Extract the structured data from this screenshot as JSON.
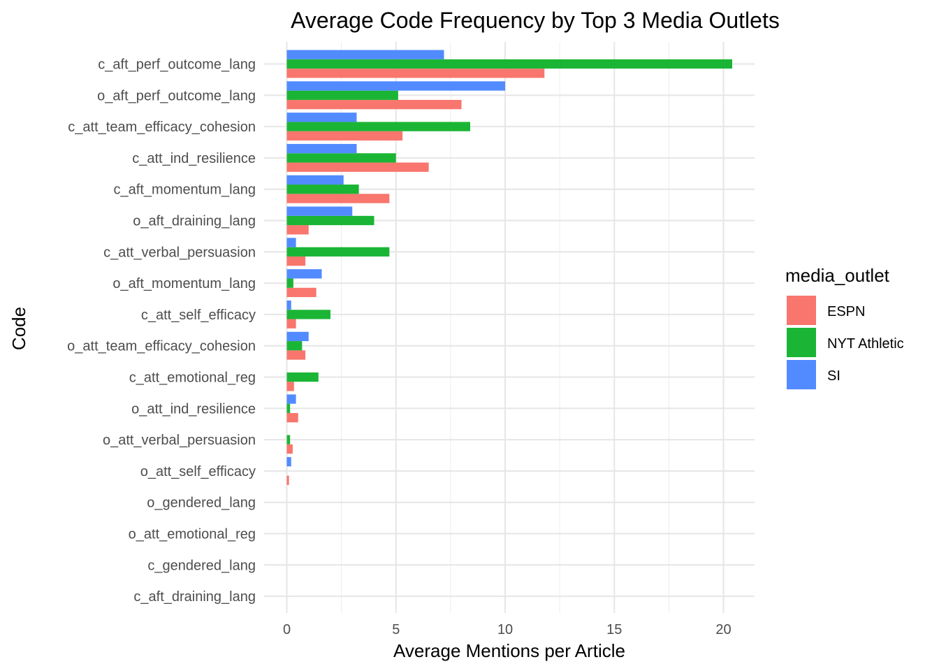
{
  "chart_data": {
    "type": "bar",
    "orientation": "horizontal",
    "title": "Average Code Frequency by Top 3 Media Outlets",
    "xlabel": "Average Mentions per Article",
    "ylabel": "Code",
    "xlim": [
      0,
      21.4
    ],
    "xticks": [
      "0",
      "5",
      "10",
      "15",
      "20"
    ],
    "grid": true,
    "legend": {
      "title": "media_outlet",
      "placement": "right"
    },
    "categories": [
      "c_aft_perf_outcome_lang",
      "o_aft_perf_outcome_lang",
      "c_att_team_efficacy_cohesion",
      "c_att_ind_resilience",
      "c_aft_momentum_lang",
      "o_aft_draining_lang",
      "c_att_verbal_persuasion",
      "o_aft_momentum_lang",
      "c_att_self_efficacy",
      "o_att_team_efficacy_cohesion",
      "c_att_emotional_reg",
      "o_att_ind_resilience",
      "o_att_verbal_persuasion",
      "o_att_self_efficacy",
      "o_gendered_lang",
      "o_att_emotional_reg",
      "c_gendered_lang",
      "c_aft_draining_lang"
    ],
    "series": [
      {
        "name": "ESPN",
        "color": "#F8766D",
        "values": [
          11.8,
          8.0,
          5.3,
          6.5,
          4.7,
          1.0,
          0.85,
          1.35,
          0.42,
          0.85,
          0.33,
          0.52,
          0.27,
          0.1,
          0,
          0,
          0,
          0
        ]
      },
      {
        "name": "NYT Athletic",
        "color": "#1BB535",
        "values": [
          20.4,
          5.1,
          8.4,
          5.0,
          3.3,
          4.0,
          4.7,
          0.3,
          2.0,
          0.7,
          1.45,
          0.15,
          0.15,
          0,
          0,
          0,
          0,
          0
        ]
      },
      {
        "name": "SI",
        "color": "#518BFF",
        "values": [
          7.2,
          10.0,
          3.2,
          3.2,
          2.6,
          3.0,
          0.42,
          1.6,
          0.2,
          1.0,
          0,
          0.42,
          0,
          0.2,
          0,
          0,
          0,
          0
        ]
      }
    ]
  }
}
